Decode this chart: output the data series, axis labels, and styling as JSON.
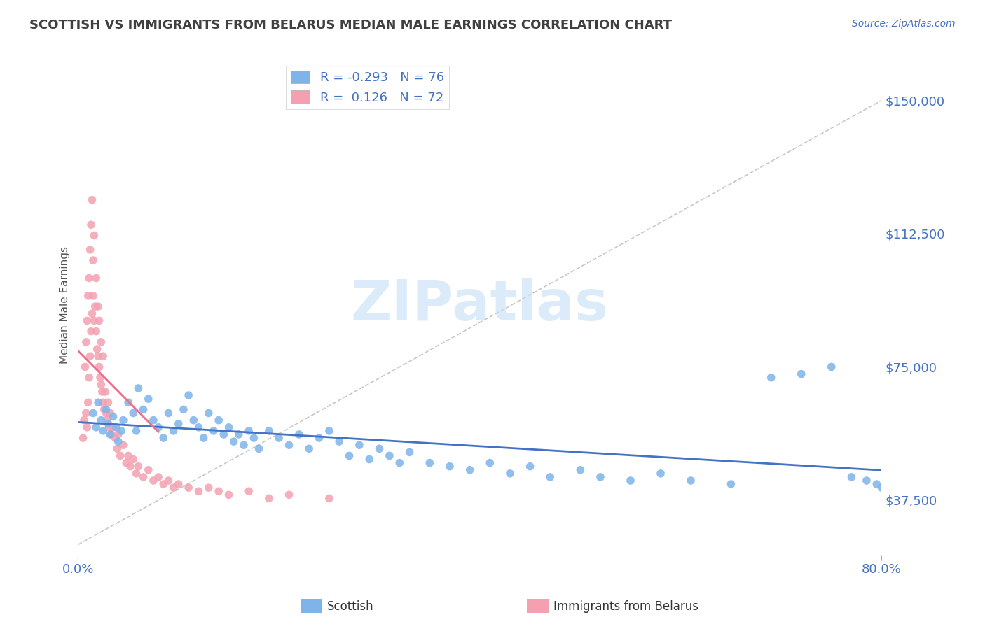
{
  "title": "SCOTTISH VS IMMIGRANTS FROM BELARUS MEDIAN MALE EARNINGS CORRELATION CHART",
  "source": "Source: ZipAtlas.com",
  "ylabel": "Median Male Earnings",
  "y_ticks": [
    37500,
    75000,
    112500,
    150000
  ],
  "y_tick_labels": [
    "$37,500",
    "$75,000",
    "$112,500",
    "$150,000"
  ],
  "x_min": 0.0,
  "x_max": 80.0,
  "y_min": 22000,
  "y_max": 163000,
  "scottish_R": -0.293,
  "scottish_N": 76,
  "belarus_R": 0.126,
  "belarus_N": 72,
  "scottish_color": "#7eb4ea",
  "belarus_color": "#f4a0b0",
  "scottish_line_color": "#4472c4",
  "belarus_line_color": "#e8708a",
  "watermark": "ZIPatlas",
  "watermark_color": "#c5dff5",
  "background_color": "#ffffff",
  "grid_color": "#c8d8ea",
  "title_color": "#404040",
  "axis_label_color": "#4472c4",
  "legend_label1": "Scottish",
  "legend_label2": "Immigrants from Belarus",
  "scottish_x": [
    1.5,
    1.8,
    2.0,
    2.3,
    2.5,
    2.8,
    3.0,
    3.2,
    3.5,
    3.8,
    4.0,
    4.3,
    4.5,
    5.0,
    5.5,
    5.8,
    6.0,
    6.5,
    7.0,
    7.5,
    8.0,
    8.5,
    9.0,
    9.5,
    10.0,
    10.5,
    11.0,
    11.5,
    12.0,
    12.5,
    13.0,
    13.5,
    14.0,
    14.5,
    15.0,
    15.5,
    16.0,
    16.5,
    17.0,
    17.5,
    18.0,
    19.0,
    20.0,
    21.0,
    22.0,
    23.0,
    24.0,
    25.0,
    26.0,
    27.0,
    28.0,
    29.0,
    30.0,
    31.0,
    32.0,
    33.0,
    35.0,
    37.0,
    39.0,
    41.0,
    43.0,
    45.0,
    47.0,
    50.0,
    52.0,
    55.0,
    58.0,
    61.0,
    65.0,
    69.0,
    72.0,
    75.0,
    77.0,
    78.5,
    79.5,
    80.0
  ],
  "scottish_y": [
    62000,
    58000,
    65000,
    60000,
    57000,
    63000,
    59000,
    56000,
    61000,
    58000,
    54000,
    57000,
    60000,
    65000,
    62000,
    57000,
    69000,
    63000,
    66000,
    60000,
    58000,
    55000,
    62000,
    57000,
    59000,
    63000,
    67000,
    60000,
    58000,
    55000,
    62000,
    57000,
    60000,
    56000,
    58000,
    54000,
    56000,
    53000,
    57000,
    55000,
    52000,
    57000,
    55000,
    53000,
    56000,
    52000,
    55000,
    57000,
    54000,
    50000,
    53000,
    49000,
    52000,
    50000,
    48000,
    51000,
    48000,
    47000,
    46000,
    48000,
    45000,
    47000,
    44000,
    46000,
    44000,
    43000,
    45000,
    43000,
    42000,
    72000,
    73000,
    75000,
    44000,
    43000,
    42000,
    41000
  ],
  "belarus_x": [
    0.5,
    0.6,
    0.7,
    0.8,
    0.8,
    0.9,
    0.9,
    1.0,
    1.0,
    1.1,
    1.1,
    1.2,
    1.2,
    1.3,
    1.3,
    1.4,
    1.4,
    1.5,
    1.5,
    1.6,
    1.6,
    1.7,
    1.8,
    1.8,
    1.9,
    2.0,
    2.0,
    2.1,
    2.1,
    2.2,
    2.3,
    2.3,
    2.4,
    2.5,
    2.5,
    2.6,
    2.7,
    2.8,
    2.9,
    3.0,
    3.1,
    3.2,
    3.3,
    3.5,
    3.7,
    3.9,
    4.0,
    4.2,
    4.5,
    4.8,
    5.0,
    5.2,
    5.5,
    5.8,
    6.0,
    6.5,
    7.0,
    7.5,
    8.0,
    8.5,
    9.0,
    9.5,
    10.0,
    11.0,
    12.0,
    13.0,
    14.0,
    15.0,
    17.0,
    19.0,
    21.0,
    25.0
  ],
  "belarus_y": [
    55000,
    60000,
    75000,
    62000,
    82000,
    58000,
    88000,
    65000,
    95000,
    72000,
    100000,
    78000,
    108000,
    85000,
    115000,
    90000,
    122000,
    95000,
    105000,
    88000,
    112000,
    92000,
    85000,
    100000,
    80000,
    78000,
    92000,
    75000,
    88000,
    72000,
    70000,
    82000,
    68000,
    65000,
    78000,
    63000,
    68000,
    62000,
    60000,
    65000,
    58000,
    62000,
    56000,
    58000,
    55000,
    52000,
    56000,
    50000,
    53000,
    48000,
    50000,
    47000,
    49000,
    45000,
    47000,
    44000,
    46000,
    43000,
    44000,
    42000,
    43000,
    41000,
    42000,
    41000,
    40000,
    41000,
    40000,
    39000,
    40000,
    38000,
    39000,
    38000
  ]
}
